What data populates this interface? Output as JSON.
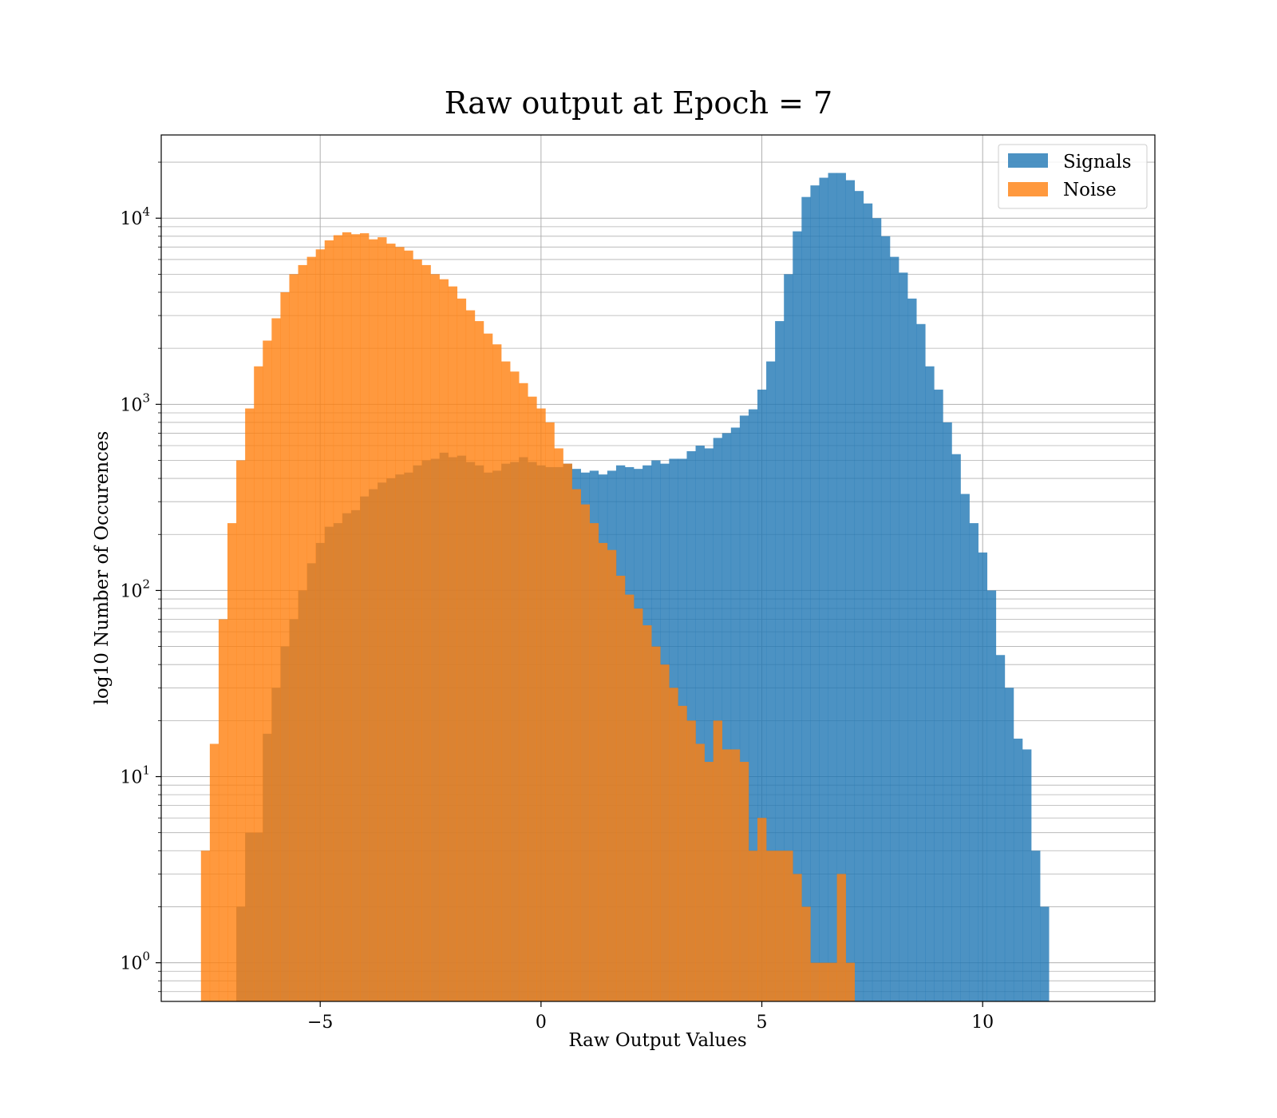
{
  "chart_data": {
    "type": "histogram",
    "title": "Raw output at Epoch = 7",
    "xlabel": "Raw Output Values",
    "ylabel": "log10 Number of Occurences",
    "xlim": [
      -8.6,
      13.9
    ],
    "ylim": [
      0.62,
      28000
    ],
    "yscale": "log",
    "grid": true,
    "legend_position": "top-right",
    "xticks": [
      -5,
      0,
      5,
      10
    ],
    "xtick_labels": [
      "−5",
      "0",
      "5",
      "10"
    ],
    "yticks": [
      {
        "value": 1,
        "base": "10",
        "exp": "0"
      },
      {
        "value": 10,
        "base": "10",
        "exp": "1"
      },
      {
        "value": 100,
        "base": "10",
        "exp": "2"
      },
      {
        "value": 1000,
        "base": "10",
        "exp": "3"
      },
      {
        "value": 10000,
        "base": "10",
        "exp": "4"
      }
    ],
    "series": [
      {
        "name": "Signals",
        "color": "#1f77b4",
        "opacity": 0.8,
        "bin_start": -6.9,
        "bin_width": 0.2,
        "counts": [
          2,
          5,
          5,
          17,
          30,
          50,
          70,
          100,
          140,
          180,
          220,
          230,
          260,
          270,
          320,
          350,
          380,
          400,
          420,
          430,
          470,
          500,
          510,
          550,
          520,
          530,
          490,
          470,
          430,
          440,
          480,
          490,
          520,
          490,
          470,
          460,
          460,
          480,
          450,
          430,
          440,
          420,
          440,
          470,
          460,
          450,
          470,
          500,
          480,
          510,
          510,
          560,
          600,
          580,
          660,
          700,
          750,
          870,
          940,
          1200,
          1700,
          2800,
          5000,
          8500,
          13000,
          15000,
          16500,
          17500,
          17500,
          16000,
          14000,
          12000,
          10000,
          8000,
          6200,
          5100,
          3700,
          2700,
          1600,
          1200,
          800,
          540,
          330,
          230,
          160,
          100,
          45,
          30,
          16,
          14,
          4,
          2
        ]
      },
      {
        "name": "Noise",
        "color": "#ff7f0e",
        "opacity": 0.8,
        "bin_start": -7.7,
        "bin_width": 0.2,
        "counts": [
          4,
          15,
          70,
          230,
          500,
          950,
          1600,
          2200,
          2900,
          4000,
          5000,
          5600,
          6200,
          6800,
          7600,
          8100,
          8400,
          8200,
          8300,
          7700,
          7900,
          7300,
          7000,
          6700,
          6000,
          5600,
          5000,
          4700,
          4300,
          3700,
          3200,
          2800,
          2400,
          2100,
          1700,
          1500,
          1300,
          1100,
          950,
          800,
          580,
          480,
          350,
          290,
          230,
          180,
          165,
          120,
          95,
          80,
          65,
          50,
          40,
          30,
          24,
          20,
          15,
          12,
          20,
          14,
          14,
          12,
          4,
          6,
          4,
          4,
          4,
          3,
          2,
          1,
          1,
          1,
          3,
          1,
          0,
          0,
          0
        ]
      }
    ]
  }
}
